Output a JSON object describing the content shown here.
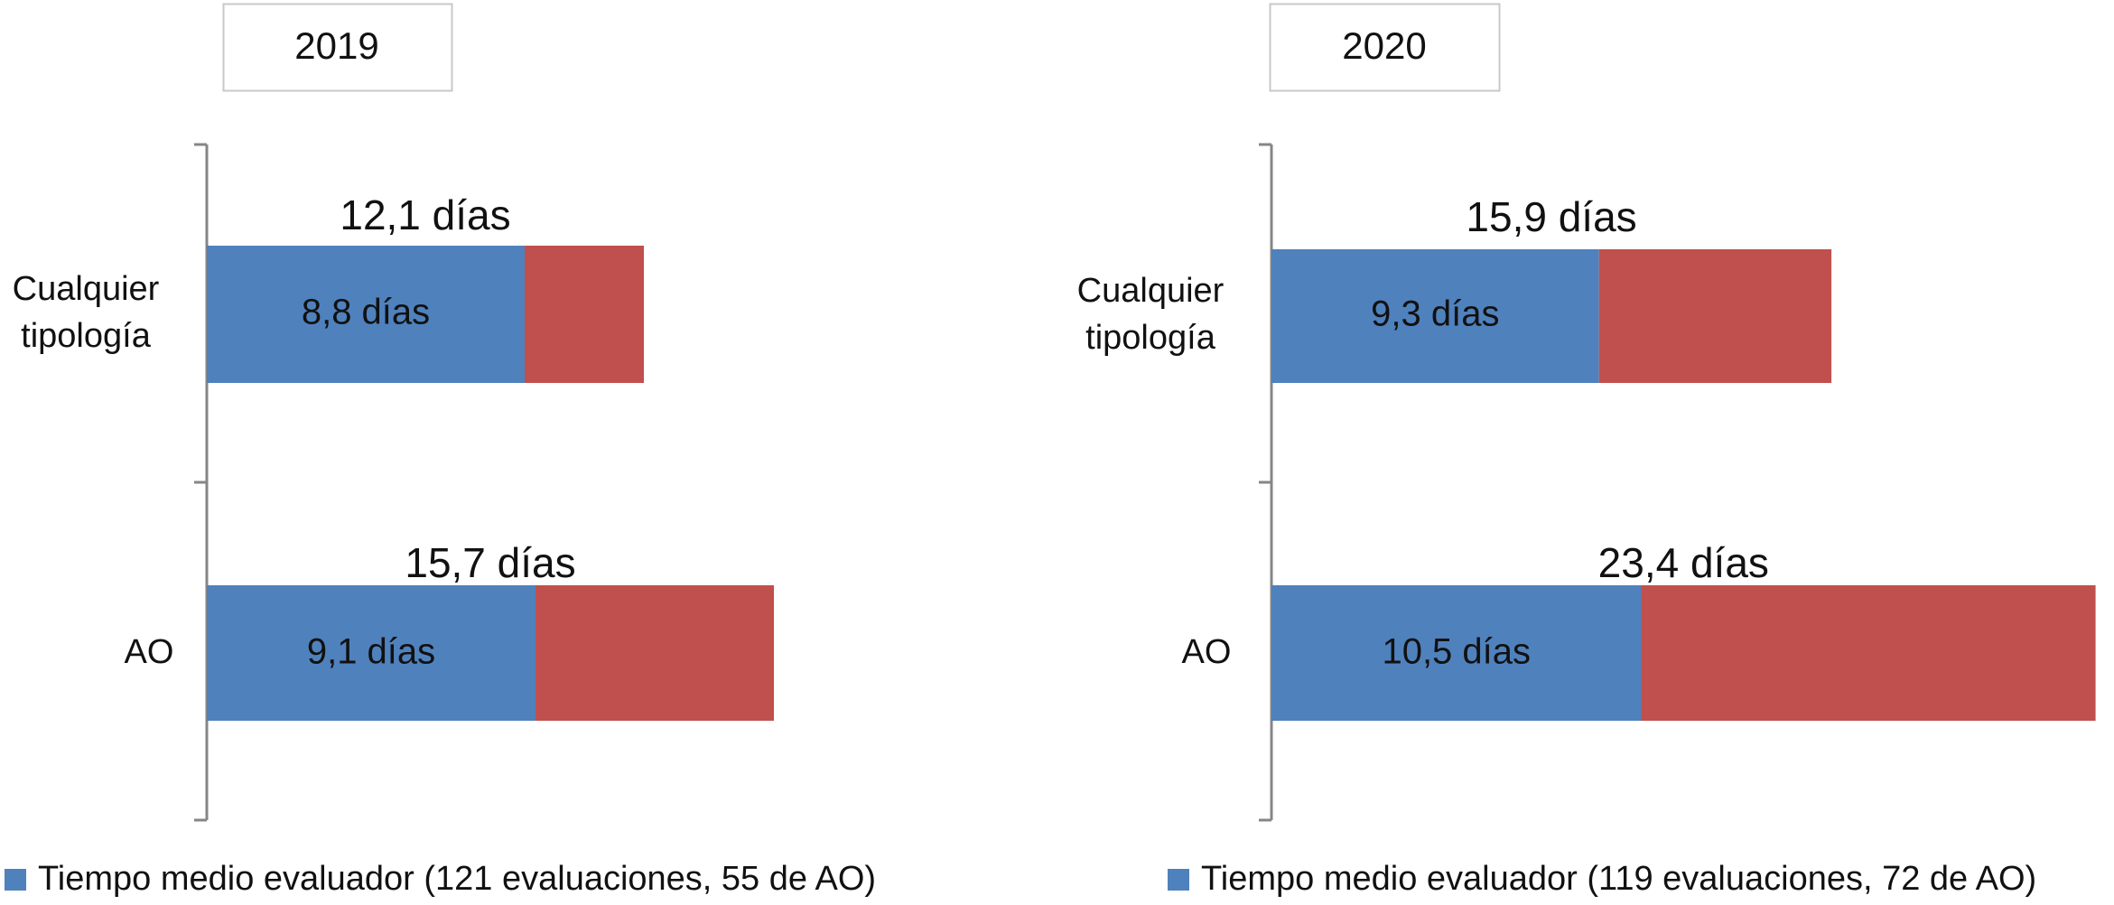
{
  "chart_data": [
    {
      "type": "bar",
      "orientation": "horizontal",
      "stacked": true,
      "title": "2019",
      "categories": [
        "Cualquier tipología",
        "AO"
      ],
      "category_lines": [
        [
          "Cualquier",
          "tipología"
        ],
        [
          "AO"
        ]
      ],
      "series": [
        {
          "name": "Tiempo medio evaluador (121 evaluaciones, 55 de AO)",
          "color": "#4F81BD",
          "values": [
            8.8,
            9.1
          ],
          "labels": [
            "8,8 días",
            "9,1 días"
          ]
        },
        {
          "color": "#C0504D",
          "values": [
            3.3,
            6.6
          ]
        }
      ],
      "totals": [
        12.1,
        15.7
      ],
      "total_labels": [
        "12,1 días",
        "15,7 días"
      ],
      "xlim": [
        0,
        24
      ],
      "grid": false,
      "legend_position": "bottom-left"
    },
    {
      "type": "bar",
      "orientation": "horizontal",
      "stacked": true,
      "title": "2020",
      "categories": [
        "Cualquier tipología",
        "AO"
      ],
      "category_lines": [
        [
          "Cualquier",
          "tipología"
        ],
        [
          "AO"
        ]
      ],
      "series": [
        {
          "name": "Tiempo medio evaluador (119 evaluaciones, 72 de AO)",
          "color": "#4F81BD",
          "values": [
            9.3,
            10.5
          ],
          "labels": [
            "9,3 días",
            "10,5 días"
          ]
        },
        {
          "color": "#C0504D",
          "values": [
            6.6,
            12.9
          ]
        }
      ],
      "totals": [
        15.9,
        23.4
      ],
      "total_labels": [
        "15,9 días",
        "23,4 días"
      ],
      "xlim": [
        0,
        24
      ],
      "grid": false,
      "legend_position": "bottom-left"
    }
  ]
}
